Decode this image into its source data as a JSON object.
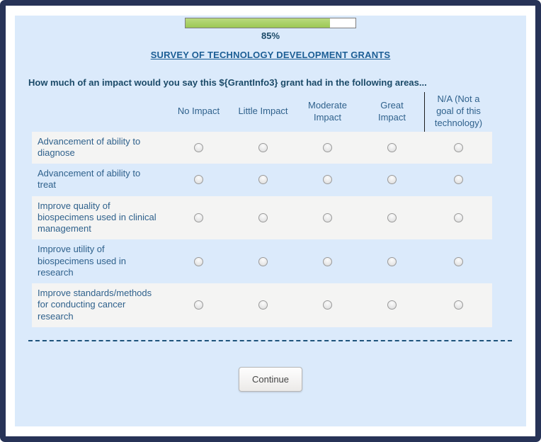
{
  "progress": {
    "percent": 85,
    "label": "85%"
  },
  "header": {
    "title": "SURVEY OF TECHNOLOGY DEVELOPMENT GRANTS"
  },
  "question": "How much of an impact would you say this ${GrantInfo3} grant had in the following areas...",
  "matrix": {
    "columns": [
      "No Impact",
      "Little Impact",
      "Moderate\nImpact",
      "Great\nImpact",
      "N/A (Not a\ngoal of this\ntechnology)"
    ],
    "rows": [
      "Advancement of ability to diagnose",
      "Advancement of ability to treat",
      "Improve quality of biospecimens used in clinical management",
      "Improve utility of biospecimens used in research",
      "Improve standards/methods for conducting cancer research"
    ]
  },
  "footer": {
    "continue_label": "Continue"
  },
  "colors": {
    "frame": "#273357",
    "panel_bg": "#dbeafb",
    "progress_fill": "#a6ce63",
    "title_text": "#1c5e95",
    "question_text": "#1b4a68",
    "table_text": "#2f618c",
    "row_alt_bg": "#f4f4f3",
    "dashed_line": "#1e537a"
  }
}
